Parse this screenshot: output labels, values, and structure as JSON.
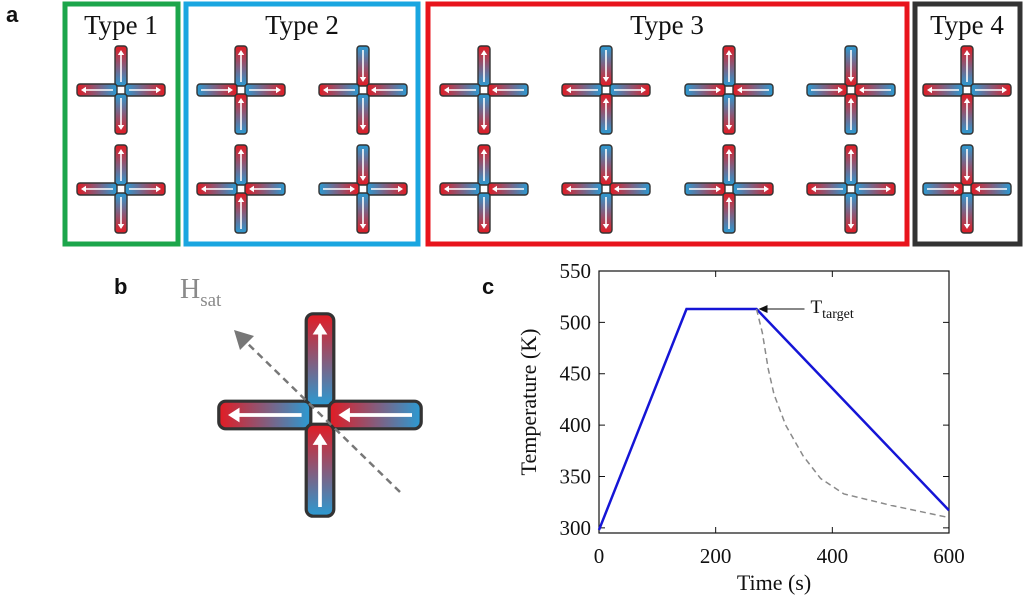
{
  "panels": {
    "a": {
      "letter": "a"
    },
    "b": {
      "letter": "b"
    },
    "c": {
      "letter": "c"
    }
  },
  "colors": {
    "magnet_north": "#e31b23",
    "magnet_south": "#2a9bd3",
    "type1_border": "#1ca64b",
    "type2_border": "#1aa6e0",
    "type3_border": "#e8141c",
    "type4_border": "#333333",
    "temperature_line": "#1515d6",
    "dashed_curve": "#8a8a8a"
  },
  "types": [
    {
      "label": "Type 1",
      "vertices": [
        [
          "N",
          "W",
          "E",
          "S"
        ],
        [
          "N",
          "W",
          "E",
          "S"
        ]
      ]
    },
    {
      "label": "Type 2",
      "vertices": [
        [
          "N",
          "E",
          "E",
          "N"
        ],
        [
          "S",
          "W",
          "W",
          "S"
        ],
        [
          "N",
          "W",
          "W",
          "N"
        ],
        [
          "S",
          "E",
          "E",
          "S"
        ]
      ]
    },
    {
      "label": "Type 3",
      "vertices": [
        [
          "N",
          "W",
          "W",
          "S"
        ],
        [
          "S",
          "W",
          "E",
          "N"
        ],
        [
          "N",
          "E",
          "W",
          "S"
        ],
        [
          "S",
          "E",
          "W",
          "N"
        ],
        [
          "N",
          "W",
          "W",
          "S"
        ],
        [
          "S",
          "W",
          "W",
          "S"
        ],
        [
          "N",
          "E",
          "E",
          "N"
        ],
        [
          "N",
          "W",
          "E",
          "S"
        ]
      ]
    },
    {
      "label": "Type 4",
      "vertices": [
        [
          "N",
          "W",
          "E",
          "N"
        ],
        [
          "S",
          "E",
          "W",
          "S"
        ]
      ]
    }
  ],
  "panel_b": {
    "field_label_main": "H",
    "field_label_sub": "sat",
    "vertex": [
      "N",
      "W",
      "W",
      "N"
    ]
  },
  "chart_data": {
    "type": "line",
    "xlabel": "Time (s)",
    "ylabel": "Temperature (K)",
    "xlim": [
      0,
      600
    ],
    "ylim": [
      295,
      550
    ],
    "xticks": [
      0,
      200,
      400,
      600
    ],
    "yticks": [
      300,
      350,
      400,
      450,
      500,
      550
    ],
    "series": [
      {
        "style": "solid",
        "x": [
          0,
          150,
          270,
          600
        ],
        "y": [
          298,
          513,
          513,
          317
        ]
      },
      {
        "style": "dashed",
        "x": [
          270,
          280,
          290,
          300,
          320,
          350,
          380,
          420,
          500,
          600
        ],
        "y": [
          513,
          490,
          455,
          430,
          400,
          370,
          348,
          333,
          322,
          310
        ]
      }
    ],
    "annotation": {
      "main": "T",
      "sub": "target",
      "x": 270,
      "y": 513
    }
  }
}
